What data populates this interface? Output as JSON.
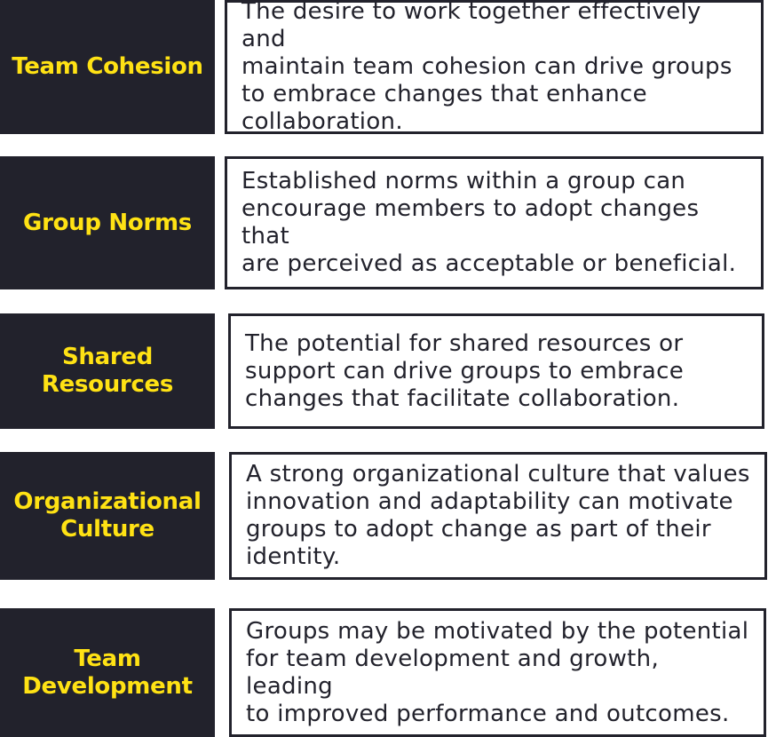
{
  "colors": {
    "label_background": "#22222c",
    "label_text": "#ffe214",
    "description_border": "#22222c",
    "description_text": "#22222c"
  },
  "rows": [
    {
      "label_lines": [
        "Team Cohesion"
      ],
      "description_lines": [
        "The desire to work together effectively and",
        "maintain team cohesion can drive groups",
        "to embrace changes that enhance",
        "collaboration."
      ]
    },
    {
      "label_lines": [
        "Group Norms"
      ],
      "description_lines": [
        "Established norms within a group can",
        "encourage members to adopt changes that",
        "are perceived as acceptable or beneficial."
      ]
    },
    {
      "label_lines": [
        "Shared",
        "Resources"
      ],
      "description_lines": [
        "The potential for shared resources or",
        "support can drive groups to embrace",
        "changes that facilitate collaboration."
      ]
    },
    {
      "label_lines": [
        "Organizational",
        "Culture"
      ],
      "description_lines": [
        "A strong organizational culture that values",
        "innovation and adaptability can motivate",
        "groups to adopt change as part of their",
        "identity."
      ]
    },
    {
      "label_lines": [
        "Team",
        "Development"
      ],
      "description_lines": [
        "Groups may be motivated by the potential",
        "for team development and growth, leading",
        "to improved performance and outcomes."
      ]
    }
  ]
}
